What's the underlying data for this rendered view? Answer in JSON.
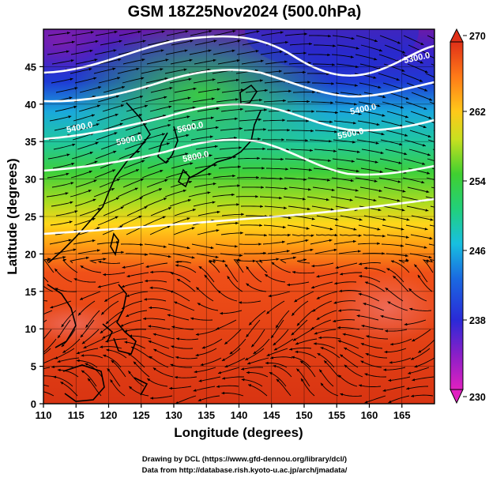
{
  "figure": {
    "title": "GSM 18Z25Nov2024 (500.0hPa)",
    "xlabel": "Longitude (degrees)",
    "ylabel": "Latitude  (degrees)",
    "credit_line_1": "Drawing by DCL (https://www.gfd-dennou.org/library/dcl/)",
    "credit_line_2": "Data from http://database.rish.kyoto-u.ac.jp/arch/jmadata/"
  },
  "chart_data": {
    "type": "heatmap",
    "title": "GSM 18Z25Nov2024 (500.0hPa)",
    "xlabel": "Longitude (degrees)",
    "ylabel": "Latitude  (degrees)",
    "xlim": [
      110,
      170
    ],
    "ylim": [
      0,
      50
    ],
    "xticks": [
      110,
      115,
      120,
      125,
      130,
      135,
      140,
      145,
      150,
      155,
      160,
      165
    ],
    "yticks": [
      0,
      5,
      10,
      15,
      20,
      25,
      30,
      35,
      40,
      45
    ],
    "colorbar": {
      "range": [
        230,
        270
      ],
      "ticks": [
        230,
        238,
        246,
        254,
        262,
        270
      ],
      "placement": "right"
    },
    "contour_labels": [
      "5400.0",
      "5300.0",
      "5400.0",
      "5800.0",
      "5900.0",
      "5500.0",
      "5600.0"
    ],
    "grid": true
  },
  "colors": {
    "cold": "#7a1fb0",
    "cool": "#1e2fcf",
    "mid_cool": "#19b4d6",
    "mid": "#33cc33",
    "warm": "#ffd21a",
    "hot": "#e0401a",
    "very_hot": "#d83010",
    "contour": "#ffffff",
    "streamline": "#000000"
  }
}
